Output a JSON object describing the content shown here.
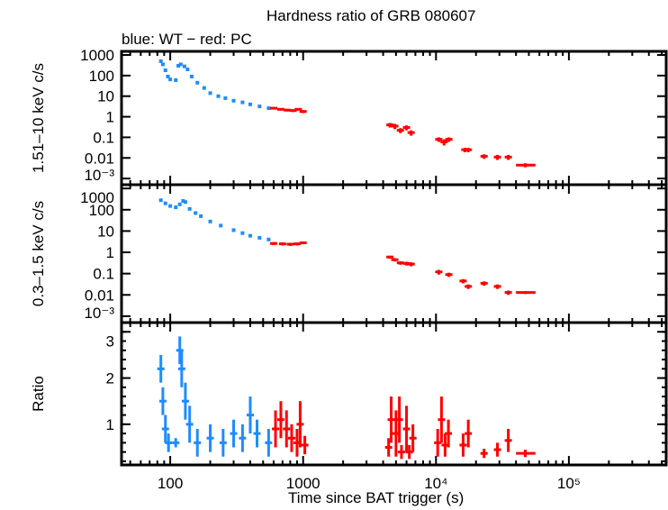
{
  "chart_data": {
    "type": "scatter",
    "title": "Hardness ratio of GRB 080607",
    "subtitle": "blue: WT − red: PC",
    "xlabel": "Time since BAT trigger (s)",
    "xscale": "log",
    "xlim": [
      43,
      540000
    ],
    "xticks": [
      {
        "v": 100,
        "label": "100"
      },
      {
        "v": 1000,
        "label": "1000"
      },
      {
        "v": 10000,
        "label": "10⁴"
      },
      {
        "v": 100000,
        "label": "10⁵"
      }
    ],
    "colors": {
      "WT": "#1e8cff",
      "PC": "#ff0000"
    },
    "panels": [
      {
        "ylabel": "1.51–10 keV c/s",
        "yscale": "log",
        "ylim": [
          0.0005,
          1500
        ],
        "yticks": [
          {
            "v": 1000,
            "label": "1000"
          },
          {
            "v": 100,
            "label": "100"
          },
          {
            "v": 10,
            "label": "10"
          },
          {
            "v": 1,
            "label": "1"
          },
          {
            "v": 0.1,
            "label": "0.1"
          },
          {
            "v": 0.01,
            "label": "0.01"
          },
          {
            "v": 0.001,
            "label": "10⁻³"
          }
        ],
        "WT": [
          [
            85,
            500
          ],
          [
            88,
            350
          ],
          [
            92,
            180
          ],
          [
            96,
            90
          ],
          [
            100,
            65
          ],
          [
            110,
            60
          ],
          [
            115,
            300
          ],
          [
            120,
            350
          ],
          [
            128,
            280
          ],
          [
            135,
            200
          ],
          [
            145,
            90
          ],
          [
            160,
            45
          ],
          [
            180,
            25
          ],
          [
            200,
            14
          ],
          [
            230,
            10
          ],
          [
            260,
            8
          ],
          [
            300,
            6
          ],
          [
            350,
            5
          ],
          [
            400,
            4
          ],
          [
            470,
            3.2
          ],
          [
            550,
            2.6
          ]
        ],
        "PC": [
          [
            600,
            2.6,
            0.3
          ],
          [
            680,
            2.3,
            0.3
          ],
          [
            760,
            2.1,
            0.3
          ],
          [
            840,
            2.0,
            0.3
          ],
          [
            920,
            2.3,
            0.3
          ],
          [
            1000,
            1.8,
            0.3
          ],
          [
            4500,
            0.4,
            0.1
          ],
          [
            4900,
            0.35,
            0.1
          ],
          [
            5400,
            0.22,
            0.06
          ],
          [
            6000,
            0.3,
            0.08
          ],
          [
            6500,
            0.17,
            0.05
          ],
          [
            10500,
            0.08,
            0.02
          ],
          [
            11500,
            0.06,
            0.02
          ],
          [
            12500,
            0.08,
            0.02
          ],
          [
            16500,
            0.025,
            0.006
          ],
          [
            17500,
            0.025,
            0.006
          ],
          [
            23000,
            0.012,
            0.003
          ],
          [
            29000,
            0.011,
            0.003
          ],
          [
            35000,
            0.011,
            0.003
          ],
          [
            47000,
            0.0045,
            0.001,
            40000,
            56000
          ]
        ]
      },
      {
        "ylabel": "0.3–1.5 keV c/s",
        "yscale": "log",
        "ylim": [
          0.0005,
          1500
        ],
        "yticks": [
          {
            "v": 1000,
            "label": "1000"
          },
          {
            "v": 100,
            "label": "100"
          },
          {
            "v": 10,
            "label": "10"
          },
          {
            "v": 1,
            "label": "1"
          },
          {
            "v": 0.1,
            "label": "0.1"
          },
          {
            "v": 0.01,
            "label": "0.01"
          },
          {
            "v": 0.001,
            "label": "10⁻³"
          }
        ],
        "WT": [
          [
            85,
            280
          ],
          [
            92,
            200
          ],
          [
            100,
            150
          ],
          [
            110,
            130
          ],
          [
            118,
            180
          ],
          [
            125,
            260
          ],
          [
            130,
            230
          ],
          [
            140,
            110
          ],
          [
            155,
            70
          ],
          [
            170,
            50
          ],
          [
            200,
            28
          ],
          [
            240,
            18
          ],
          [
            300,
            11
          ],
          [
            350,
            8
          ],
          [
            400,
            6
          ],
          [
            470,
            4.8
          ],
          [
            550,
            4
          ]
        ],
        "PC": [
          [
            600,
            2.6,
            0.4
          ],
          [
            700,
            2.5,
            0.4
          ],
          [
            800,
            2.4,
            0.4
          ],
          [
            900,
            2.5,
            0.4
          ],
          [
            1000,
            2.8,
            0.4
          ],
          [
            4500,
            0.6,
            0.1
          ],
          [
            4900,
            0.45,
            0.08
          ],
          [
            5400,
            0.32,
            0.06
          ],
          [
            6000,
            0.3,
            0.06
          ],
          [
            6500,
            0.28,
            0.06
          ],
          [
            10500,
            0.12,
            0.03
          ],
          [
            12500,
            0.09,
            0.02
          ],
          [
            16000,
            0.045,
            0.01
          ],
          [
            17500,
            0.025,
            0.006
          ],
          [
            23000,
            0.035,
            0.008
          ],
          [
            29000,
            0.025,
            0.006
          ],
          [
            35000,
            0.013,
            0.003
          ],
          [
            47000,
            0.013,
            0.002,
            40000,
            56000
          ]
        ]
      },
      {
        "ylabel": "Ratio",
        "yscale": "linear",
        "ylim": [
          0.12,
          3.2
        ],
        "yticks": [
          {
            "v": 3,
            "label": "3"
          },
          {
            "v": 2,
            "label": "2"
          },
          {
            "v": 1,
            "label": "1"
          }
        ],
        "WT": [
          [
            85,
            2.2,
            0.3
          ],
          [
            88,
            1.5,
            0.3
          ],
          [
            92,
            0.9,
            0.3
          ],
          [
            97,
            0.6,
            0.2
          ],
          [
            110,
            0.6,
            0.1
          ],
          [
            118,
            2.6,
            0.3
          ],
          [
            122,
            2.2,
            0.4
          ],
          [
            130,
            1.5,
            0.4
          ],
          [
            140,
            1.0,
            0.4
          ],
          [
            160,
            0.6,
            0.3
          ],
          [
            200,
            0.7,
            0.3
          ],
          [
            250,
            0.6,
            0.3
          ],
          [
            300,
            0.8,
            0.3
          ],
          [
            350,
            0.7,
            0.3
          ],
          [
            400,
            1.2,
            0.4
          ],
          [
            450,
            0.8,
            0.3
          ],
          [
            550,
            0.6,
            0.3
          ]
        ],
        "PC": [
          [
            620,
            0.9,
            0.4
          ],
          [
            680,
            1.1,
            0.4
          ],
          [
            750,
            0.9,
            0.4
          ],
          [
            820,
            0.7,
            0.3
          ],
          [
            900,
            0.6,
            0.3
          ],
          [
            950,
            1.0,
            0.5
          ],
          [
            1030,
            0.55,
            0.2
          ],
          [
            4400,
            0.5,
            0.2
          ],
          [
            4600,
            1.1,
            0.5
          ],
          [
            5000,
            0.8,
            0.5
          ],
          [
            5300,
            1.1,
            0.5
          ],
          [
            5500,
            0.4,
            0.15
          ],
          [
            6000,
            0.9,
            0.5
          ],
          [
            6300,
            0.4,
            0.15
          ],
          [
            6700,
            0.7,
            0.3
          ],
          [
            10300,
            0.6,
            0.3
          ],
          [
            11000,
            1.1,
            0.5
          ],
          [
            11700,
            0.55,
            0.25
          ],
          [
            12400,
            0.8,
            0.3
          ],
          [
            16000,
            0.55,
            0.25
          ],
          [
            17500,
            0.8,
            0.3
          ],
          [
            23000,
            0.37,
            0.1
          ],
          [
            29000,
            0.45,
            0.15
          ],
          [
            35000,
            0.65,
            0.25
          ],
          [
            47000,
            0.37,
            0.08,
            40000,
            56000
          ]
        ]
      }
    ]
  }
}
